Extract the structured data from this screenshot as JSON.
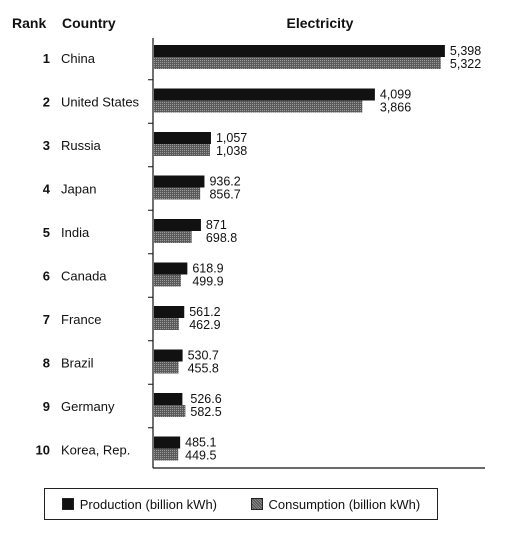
{
  "chart_data": {
    "type": "bar",
    "orientation": "horizontal",
    "title": "Electricity",
    "rank_header": "Rank",
    "country_header": "Country",
    "categories": [
      "China",
      "United States",
      "Russia",
      "Japan",
      "India",
      "Canada",
      "France",
      "Brazil",
      "Germany",
      "Korea, Rep."
    ],
    "ranks": [
      "1",
      "2",
      "3",
      "4",
      "5",
      "6",
      "7",
      "8",
      "9",
      "10"
    ],
    "series": [
      {
        "name": "Production (billion kWh)",
        "values": [
          5398,
          4099,
          1057,
          936.2,
          871,
          618.9,
          561.2,
          530.7,
          526.6,
          485.1
        ],
        "labels": [
          "5,398",
          "4,099",
          "1,057",
          "936.2",
          "871",
          "618.9",
          "561.2",
          "530.7",
          "526.6",
          "485.1"
        ],
        "color": "#111111"
      },
      {
        "name": "Consumption (billion kWh)",
        "values": [
          5322,
          3866,
          1038,
          856.7,
          698.8,
          499.9,
          462.9,
          455.8,
          582.5,
          449.5
        ],
        "labels": [
          "5,322",
          "3,866",
          "1,038",
          "856.7",
          "698.8",
          "499.9",
          "462.9",
          "455.8",
          "582.5",
          "449.5"
        ],
        "color": "#6e6e6e"
      }
    ],
    "xlim": [
      0,
      5400
    ],
    "grid": false,
    "legend_position": "bottom"
  },
  "legend": {
    "production_label": "Production (billion kWh)",
    "consumption_label": "Consumption (billion kWh)"
  }
}
